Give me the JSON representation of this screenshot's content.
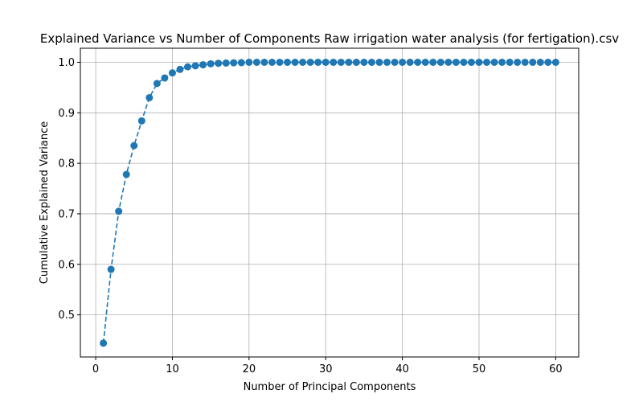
{
  "chart_data": {
    "type": "line",
    "title": "Explained Variance vs Number of Components Raw irrigation water analysis (for fertigation).csv",
    "xlabel": "Number of Principal Components",
    "ylabel": "Cumulative Explained Variance",
    "xlim": [
      -2,
      63
    ],
    "ylim": [
      0.4166,
      1.0278
    ],
    "xticks": [
      0,
      10,
      20,
      30,
      40,
      50,
      60
    ],
    "yticks": [
      0.5,
      0.6,
      0.7,
      0.8,
      0.9,
      1.0
    ],
    "xtick_labels": [
      "0",
      "10",
      "20",
      "30",
      "40",
      "50",
      "60"
    ],
    "ytick_labels": [
      "0.5",
      "0.6",
      "0.7",
      "0.8",
      "0.9",
      "1.0"
    ],
    "grid": true,
    "line_style": "dashed",
    "marker": "circle",
    "color": "#1f77b4",
    "series": [
      {
        "x": [
          1,
          2,
          3,
          4,
          5,
          6,
          7,
          8,
          9,
          10,
          11,
          12,
          13,
          14,
          15,
          16,
          17,
          18,
          19,
          20,
          21,
          22,
          23,
          24,
          25,
          26,
          27,
          28,
          29,
          30,
          31,
          32,
          33,
          34,
          35,
          36,
          37,
          38,
          39,
          40,
          41,
          42,
          43,
          44,
          45,
          46,
          47,
          48,
          49,
          50,
          51,
          52,
          53,
          54,
          55,
          56,
          57,
          58,
          59,
          60
        ],
        "values": [
          0.444,
          0.59,
          0.705,
          0.778,
          0.835,
          0.884,
          0.93,
          0.958,
          0.969,
          0.979,
          0.986,
          0.991,
          0.993,
          0.995,
          0.997,
          0.998,
          0.9985,
          0.999,
          0.9993,
          1.0,
          1.0,
          1.0,
          1.0,
          1.0,
          1.0,
          1.0,
          1.0,
          1.0,
          1.0,
          1.0,
          1.0,
          1.0,
          1.0,
          1.0,
          1.0,
          1.0,
          1.0,
          1.0,
          1.0,
          1.0,
          1.0,
          1.0,
          1.0,
          1.0,
          1.0,
          1.0,
          1.0,
          1.0,
          1.0,
          1.0,
          1.0,
          1.0,
          1.0,
          1.0,
          1.0,
          1.0,
          1.0,
          1.0,
          1.0,
          1.0
        ]
      }
    ]
  }
}
